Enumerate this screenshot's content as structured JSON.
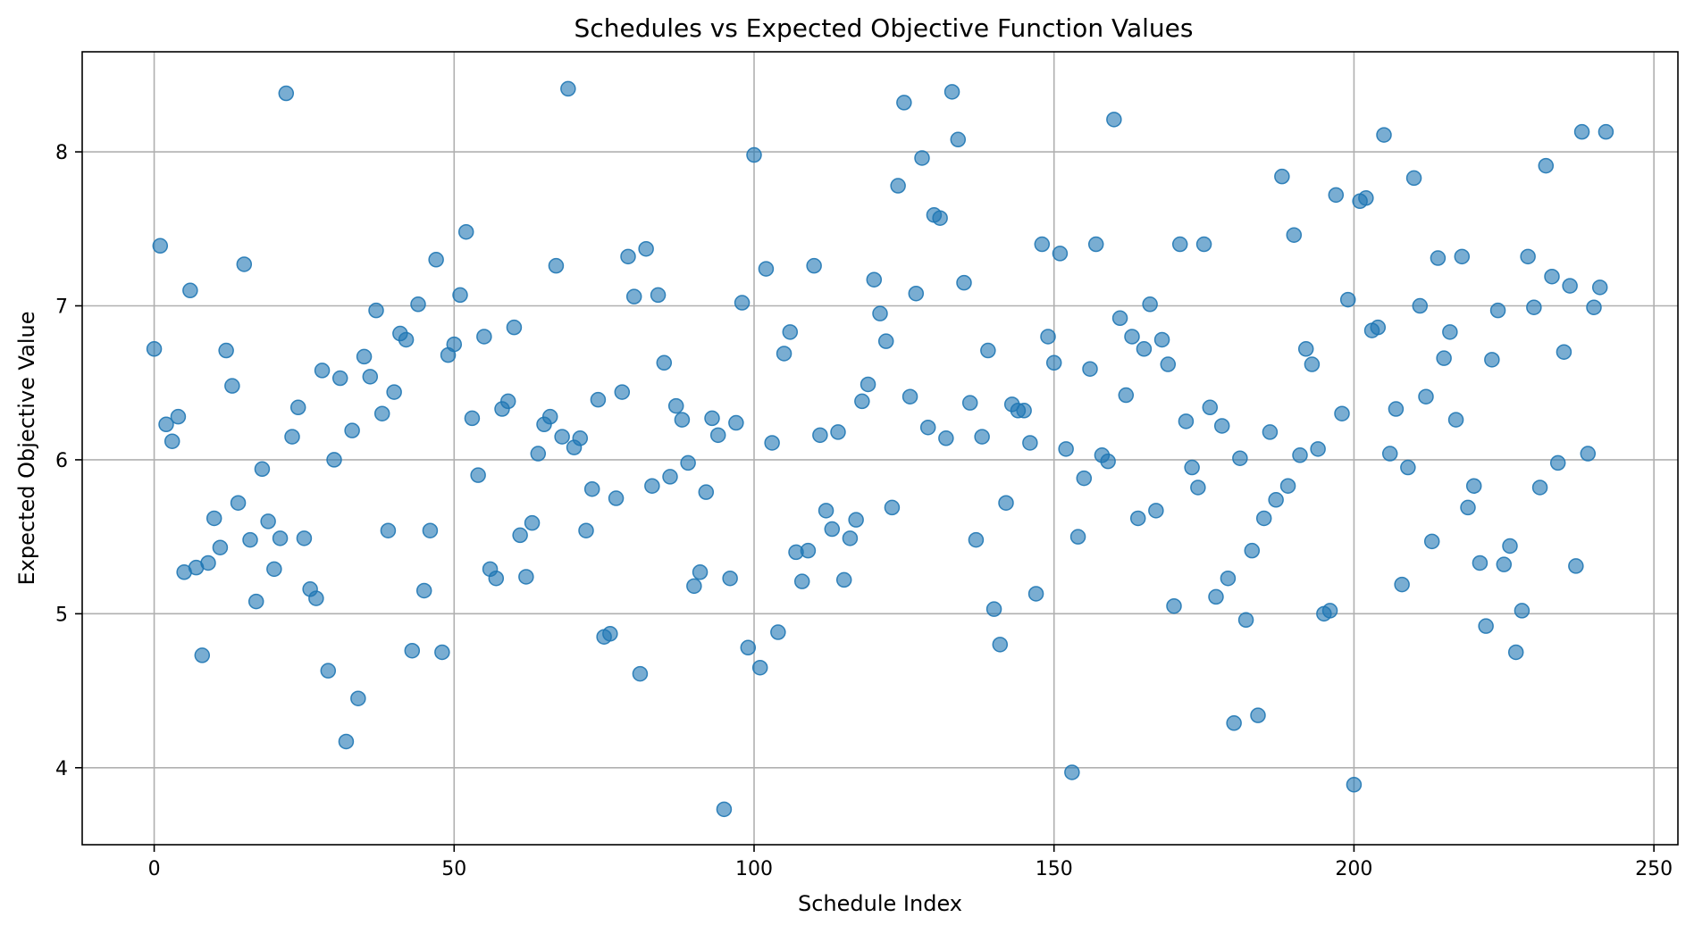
{
  "chart_data": {
    "type": "scatter",
    "title": "Schedules vs Expected Objective Function Values",
    "xlabel": "Schedule Index",
    "ylabel": "Expected Objective Value",
    "xlim": [
      -12,
      254
    ],
    "ylim": [
      3.5,
      8.65
    ],
    "xticks": [
      0,
      50,
      100,
      150,
      200,
      250
    ],
    "yticks": [
      4,
      5,
      6,
      7,
      8
    ],
    "grid": true,
    "marker_color": "#1f77b4",
    "series": [
      {
        "x": [
          0,
          1,
          2,
          3,
          4,
          5,
          6,
          7,
          8,
          9,
          10,
          11,
          12,
          13,
          14,
          15,
          16,
          17,
          18,
          19,
          20,
          21,
          22,
          23,
          24,
          25,
          26,
          27,
          28,
          29,
          30,
          31,
          32,
          33,
          34,
          35,
          36,
          37,
          38,
          39,
          40,
          41,
          42,
          43,
          44,
          45,
          46,
          47,
          48,
          49,
          50,
          51,
          52,
          53,
          54,
          55,
          56,
          57,
          58,
          59,
          60,
          61,
          62,
          63,
          64,
          65,
          66,
          67,
          68,
          69,
          70,
          71,
          72,
          73,
          74,
          75,
          76,
          77,
          78,
          79,
          80,
          81,
          82,
          83,
          84,
          85,
          86,
          87,
          88,
          89,
          90,
          91,
          92,
          93,
          94,
          95,
          96,
          97,
          98,
          99,
          100,
          101,
          102,
          103,
          104,
          105,
          106,
          107,
          108,
          109,
          110,
          111,
          112,
          113,
          114,
          115,
          116,
          117,
          118,
          119,
          120,
          121,
          122,
          123,
          124,
          125,
          126,
          127,
          128,
          129,
          130,
          131,
          132,
          133,
          134,
          135,
          136,
          137,
          138,
          139,
          140,
          141,
          142,
          143,
          144,
          145,
          146,
          147,
          148,
          149,
          150,
          151,
          152,
          153,
          154,
          155,
          156,
          157,
          158,
          159,
          160,
          161,
          162,
          163,
          164,
          165,
          166,
          167,
          168,
          169,
          170,
          171,
          172,
          173,
          174,
          175,
          176,
          177,
          178,
          179,
          180,
          181,
          182,
          183,
          184,
          185,
          186,
          187,
          188,
          189,
          190,
          191,
          192,
          193,
          194,
          195,
          196,
          197,
          198,
          199,
          200,
          201,
          202,
          203,
          204,
          205,
          206,
          207,
          208,
          209,
          210,
          211,
          212,
          213,
          214,
          215,
          216,
          217,
          218,
          219,
          220,
          221,
          222,
          223,
          224,
          225,
          226,
          227,
          228,
          229,
          230,
          231,
          232,
          233,
          234,
          235,
          236,
          237,
          238,
          239,
          240,
          241,
          242
        ],
        "y": [
          6.72,
          7.39,
          6.23,
          6.12,
          6.28,
          5.27,
          7.1,
          5.3,
          4.73,
          5.33,
          5.62,
          5.43,
          6.71,
          6.48,
          5.72,
          7.27,
          5.48,
          5.08,
          5.94,
          5.6,
          5.29,
          5.49,
          8.38,
          6.15,
          6.34,
          5.49,
          5.16,
          5.1,
          6.58,
          4.63,
          6.0,
          6.53,
          4.17,
          6.19,
          4.45,
          6.67,
          6.54,
          6.97,
          6.3,
          5.54,
          6.44,
          6.82,
          6.78,
          4.76,
          7.01,
          5.15,
          5.54,
          7.3,
          4.75,
          6.68,
          6.75,
          7.07,
          7.48,
          6.27,
          5.9,
          6.8,
          5.29,
          5.23,
          6.33,
          6.38,
          6.86,
          5.51,
          5.24,
          5.59,
          6.04,
          6.23,
          6.28,
          7.26,
          6.15,
          8.41,
          6.08,
          6.14,
          5.54,
          5.81,
          6.39,
          4.85,
          4.87,
          5.75,
          6.44,
          7.32,
          7.06,
          4.61,
          7.37,
          5.83,
          7.07,
          6.63,
          5.89,
          6.35,
          6.26,
          5.98,
          5.18,
          5.27,
          5.79,
          6.27,
          6.16,
          3.73,
          5.23,
          6.24,
          7.02,
          4.78,
          7.98,
          4.65,
          7.24,
          6.11,
          4.88,
          6.69,
          6.83,
          5.4,
          5.21,
          5.41,
          7.26,
          6.16,
          5.67,
          5.55,
          6.18,
          5.22,
          5.49,
          5.61,
          6.38,
          6.49,
          7.17,
          6.95,
          6.77,
          5.69,
          7.78,
          8.32,
          6.41,
          7.08,
          7.96,
          6.21,
          7.59,
          7.57,
          6.14,
          8.39,
          8.08,
          7.15,
          6.37,
          5.48,
          6.15,
          6.71,
          5.03,
          4.8,
          5.72,
          6.36,
          6.32,
          6.32,
          6.11,
          5.13,
          7.4,
          6.8,
          6.63,
          7.34,
          6.07,
          3.97,
          5.5,
          5.88,
          6.59,
          7.4,
          6.03,
          5.99,
          8.21,
          6.92,
          6.42,
          6.8,
          5.62,
          6.72,
          7.01,
          5.67,
          6.78,
          6.62,
          5.05,
          7.4,
          6.25,
          5.95,
          5.82,
          7.4,
          6.34,
          5.11,
          6.22,
          5.23,
          4.29,
          6.01,
          4.96,
          5.41,
          4.34,
          5.62,
          6.18,
          5.74,
          7.84,
          5.83,
          7.46,
          6.03,
          6.72,
          6.62,
          6.07,
          5.0,
          5.02,
          7.72,
          6.3,
          7.04,
          3.89,
          7.68,
          7.7,
          6.84,
          6.86,
          8.11,
          6.04,
          6.33,
          5.19,
          5.95,
          7.83,
          7.0,
          6.41,
          5.47,
          7.31,
          6.66,
          6.83,
          6.26,
          7.32,
          5.69,
          5.83,
          5.33,
          4.92,
          6.65,
          6.97,
          5.32,
          5.44,
          4.75,
          5.02,
          7.32,
          6.99,
          5.82,
          7.91,
          7.19,
          5.98,
          6.7,
          7.13,
          5.31,
          8.13,
          6.04,
          6.99,
          7.12,
          8.13
        ]
      }
    ]
  }
}
